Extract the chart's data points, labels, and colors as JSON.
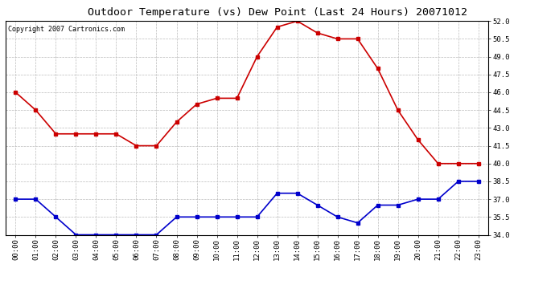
{
  "title": "Outdoor Temperature (vs) Dew Point (Last 24 Hours) 20071012",
  "copyright": "Copyright 2007 Cartronics.com",
  "hours": [
    "00:00",
    "01:00",
    "02:00",
    "03:00",
    "04:00",
    "05:00",
    "06:00",
    "07:00",
    "08:00",
    "09:00",
    "10:00",
    "11:00",
    "12:00",
    "13:00",
    "14:00",
    "15:00",
    "16:00",
    "17:00",
    "18:00",
    "19:00",
    "20:00",
    "21:00",
    "22:00",
    "23:00"
  ],
  "temp": [
    46.0,
    44.5,
    42.5,
    42.5,
    42.5,
    42.5,
    41.5,
    41.5,
    43.5,
    45.0,
    45.5,
    45.5,
    49.0,
    51.5,
    52.0,
    51.0,
    50.5,
    50.5,
    48.0,
    44.5,
    42.0,
    40.0,
    40.0,
    40.0
  ],
  "dewpoint": [
    37.0,
    37.0,
    35.5,
    34.0,
    34.0,
    34.0,
    34.0,
    34.0,
    35.5,
    35.5,
    35.5,
    35.5,
    35.5,
    37.5,
    37.5,
    36.5,
    35.5,
    35.0,
    36.5,
    36.5,
    37.0,
    37.0,
    38.5,
    38.5
  ],
  "temp_color": "#cc0000",
  "dew_color": "#0000cc",
  "bg_color": "#ffffff",
  "plot_bg_color": "#ffffff",
  "grid_color": "#bbbbbb",
  "ylim_min": 34.0,
  "ylim_max": 52.0,
  "yticks": [
    34.0,
    35.5,
    37.0,
    38.5,
    40.0,
    41.5,
    43.0,
    44.5,
    46.0,
    47.5,
    49.0,
    50.5,
    52.0
  ],
  "title_fontsize": 9.5,
  "copyright_fontsize": 6,
  "tick_fontsize": 6.5,
  "marker": "s",
  "marker_size": 2.5,
  "linewidth": 1.2
}
